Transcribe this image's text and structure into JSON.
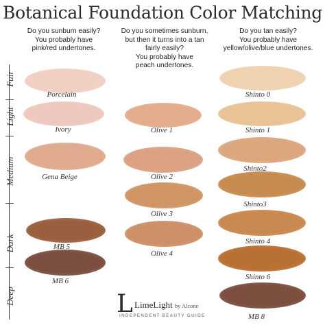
{
  "title": "Botanical Foundation Color Matching",
  "columns": [
    {
      "lines": [
        "Do you sunburn easily?",
        "You probably have",
        "pink/red undertones."
      ]
    },
    {
      "lines": [
        "Do you sometimes sunburn,",
        "but then it turns into a tan",
        "fairly easily?",
        "You probably have",
        "peach undertones."
      ]
    },
    {
      "lines": [
        "Do you tan easily?",
        "You probably have",
        "yellow/olive/blue undertones."
      ]
    }
  ],
  "scale": [
    "Fair",
    "Light",
    "Medium",
    "Dark",
    "Deep"
  ],
  "shades": [
    {
      "name": "Porcelain",
      "color": "#f1cfc3"
    },
    {
      "name": "Ivory",
      "color": "#eec8be"
    },
    {
      "name": "Gena Beige",
      "color": "#dfaa8e"
    },
    {
      "name": "MB 5",
      "color": "#9b5f3f"
    },
    {
      "name": "MB 6",
      "color": "#7c4e3f"
    },
    {
      "name": "Olive 1",
      "color": "#e3ac8c"
    },
    {
      "name": "Olive 2",
      "color": "#dca182"
    },
    {
      "name": "Olive 3",
      "color": "#cf9565"
    },
    {
      "name": "Olive 4",
      "color": "#cd9068"
    },
    {
      "name": "Shinto 0",
      "color": "#efd2b0"
    },
    {
      "name": "Shinto 1",
      "color": "#e9c296"
    },
    {
      "name": "Shinto2",
      "color": "#dca67e"
    },
    {
      "name": "Shinto3",
      "color": "#c78b50"
    },
    {
      "name": "Shinto 4",
      "color": "#c9884f"
    },
    {
      "name": "Shinto 6",
      "color": "#b97033"
    },
    {
      "name": "MB 8",
      "color": "#7c4e3e"
    }
  ],
  "logo": {
    "mark": "L",
    "name": "LimeLight",
    "by": "by Alcone",
    "tagline": "INDEPENDENT BEAUTY GUIDE"
  }
}
